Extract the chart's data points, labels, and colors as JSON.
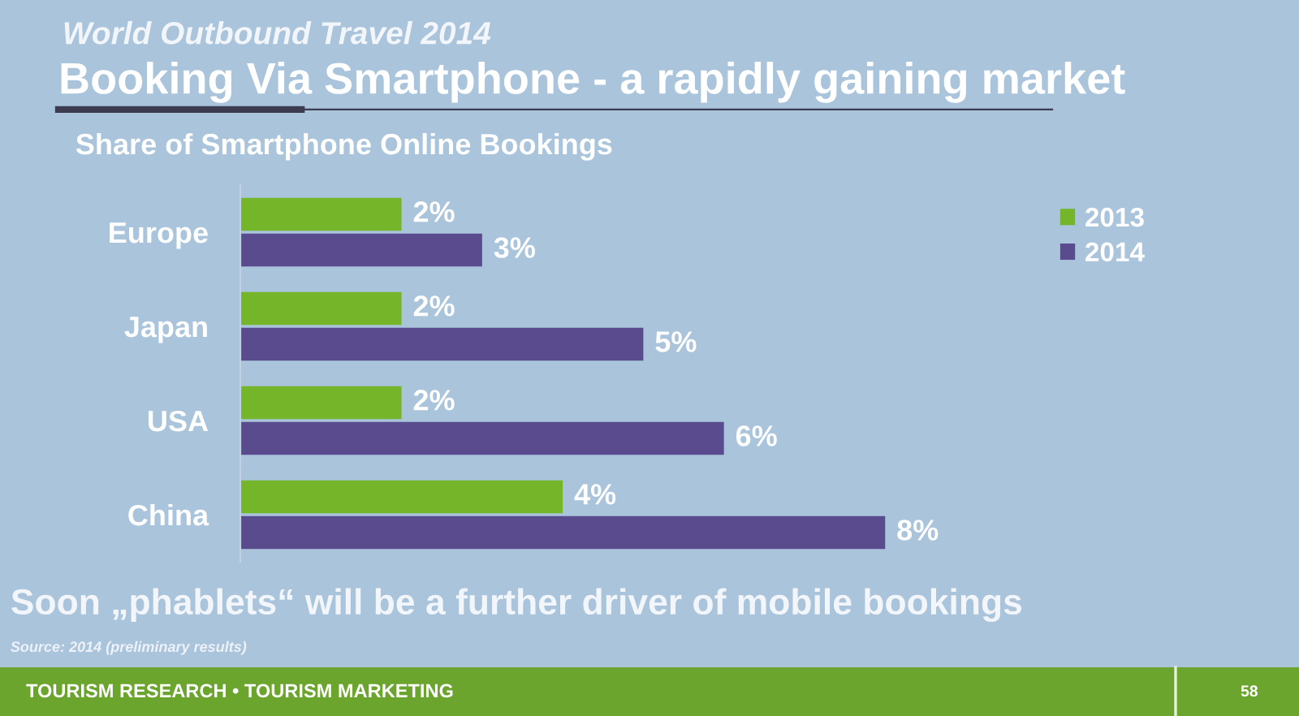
{
  "chart_data": {
    "type": "bar",
    "orientation": "horizontal",
    "title": "Booking Via Smartphone - a rapidly gaining market",
    "subtitle": "Share of Smartphone Online Bookings",
    "categories": [
      "Europe",
      "Japan",
      "USA",
      "China"
    ],
    "series": [
      {
        "name": "2013",
        "color": "#74b52a",
        "values": [
          2,
          2,
          2,
          4
        ],
        "value_labels": [
          "2%",
          "2%",
          "2%",
          "4%"
        ]
      },
      {
        "name": "2014",
        "color": "#5a4a8e",
        "values": [
          3,
          5,
          6,
          8
        ],
        "value_labels": [
          "3%",
          "5%",
          "6%",
          "8%"
        ]
      }
    ],
    "legend": "top right",
    "grid": false,
    "tick_labels": "y",
    "annotations": [
      "World Outbound Travel 2014",
      "Soon „phablets“ will be a further driver of mobile bookings",
      "Source: 2014 (preliminary results)",
      "TOURISM RESEARCH • TOURISM MARKETING",
      "58"
    ]
  }
}
